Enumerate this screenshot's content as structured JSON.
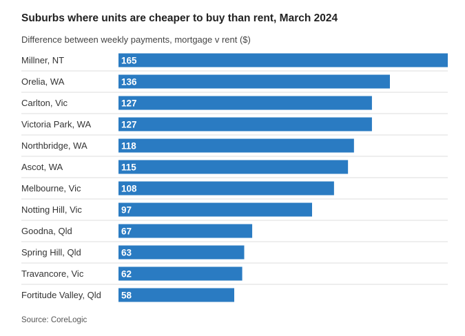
{
  "chart_data": {
    "type": "bar",
    "orientation": "horizontal",
    "title": "Suburbs where units are cheaper to buy than rent, March 2024",
    "subtitle": "Difference between weekly payments, mortgage v rent ($)",
    "source": "Source: CoreLogic",
    "categories": [
      "Millner, NT",
      "Orelia, WA",
      "Carlton, Vic",
      "Victoria Park, WA",
      "Northbridge, WA",
      "Ascot, WA",
      "Melbourne, Vic",
      "Notting Hill, Vic",
      "Goodna, Qld",
      "Spring Hill, Qld",
      "Travancore, Vic",
      "Fortitude Valley, Qld"
    ],
    "values": [
      165,
      136,
      127,
      127,
      118,
      115,
      108,
      97,
      67,
      63,
      62,
      58
    ],
    "xlim": [
      0,
      165
    ],
    "xlabel": "",
    "ylabel": "",
    "grid": false,
    "colors": {
      "bar": "#2a7bc2",
      "bar_label": "#ffffff",
      "category_label": "#333333",
      "row_divider": "#dddddd"
    }
  }
}
